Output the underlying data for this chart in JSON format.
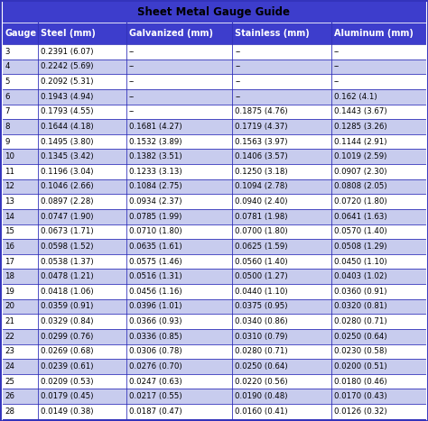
{
  "title": "Sheet Metal Gauge Guide",
  "columns": [
    "Gauge",
    "Steel (mm)",
    "Galvanized (mm)",
    "Stainless (mm)",
    "Aluminum (mm)"
  ],
  "rows": [
    [
      "3",
      "0.2391 (6.07)",
      "--",
      "--",
      "--"
    ],
    [
      "4",
      "0.2242 (5.69)",
      "--",
      "--",
      "--"
    ],
    [
      "5",
      "0.2092 (5.31)",
      "--",
      "--",
      "--"
    ],
    [
      "6",
      "0.1943 (4.94)",
      "--",
      "--",
      "0.162 (4.1)"
    ],
    [
      "7",
      "0.1793 (4.55)",
      "--",
      "0.1875 (4.76)",
      "0.1443 (3.67)"
    ],
    [
      "8",
      "0.1644 (4.18)",
      "0.1681 (4.27)",
      "0.1719 (4.37)",
      "0.1285 (3.26)"
    ],
    [
      "9",
      "0.1495 (3.80)",
      "0.1532 (3.89)",
      "0.1563 (3.97)",
      "0.1144 (2.91)"
    ],
    [
      "10",
      "0.1345 (3.42)",
      "0.1382 (3.51)",
      "0.1406 (3.57)",
      "0.1019 (2.59)"
    ],
    [
      "11",
      "0.1196 (3.04)",
      "0.1233 (3.13)",
      "0.1250 (3.18)",
      "0.0907 (2.30)"
    ],
    [
      "12",
      "0.1046 (2.66)",
      "0.1084 (2.75)",
      "0.1094 (2.78)",
      "0.0808 (2.05)"
    ],
    [
      "13",
      "0.0897 (2.28)",
      "0.0934 (2.37)",
      "0.0940 (2.40)",
      "0.0720 (1.80)"
    ],
    [
      "14",
      "0.0747 (1.90)",
      "0.0785 (1.99)",
      "0.0781 (1.98)",
      "0.0641 (1.63)"
    ],
    [
      "15",
      "0.0673 (1.71)",
      "0.0710 (1.80)",
      "0.0700 (1.80)",
      "0.0570 (1.40)"
    ],
    [
      "16",
      "0.0598 (1.52)",
      "0.0635 (1.61)",
      "0.0625 (1.59)",
      "0.0508 (1.29)"
    ],
    [
      "17",
      "0.0538 (1.37)",
      "0.0575 (1.46)",
      "0.0560 (1.40)",
      "0.0450 (1.10)"
    ],
    [
      "18",
      "0.0478 (1.21)",
      "0.0516 (1.31)",
      "0.0500 (1.27)",
      "0.0403 (1.02)"
    ],
    [
      "19",
      "0.0418 (1.06)",
      "0.0456 (1.16)",
      "0.0440 (1.10)",
      "0.0360 (0.91)"
    ],
    [
      "20",
      "0.0359 (0.91)",
      "0.0396 (1.01)",
      "0.0375 (0.95)",
      "0.0320 (0.81)"
    ],
    [
      "21",
      "0.0329 (0.84)",
      "0.0366 (0.93)",
      "0.0340 (0.86)",
      "0.0280 (0.71)"
    ],
    [
      "22",
      "0.0299 (0.76)",
      "0.0336 (0.85)",
      "0.0310 (0.79)",
      "0.0250 (0.64)"
    ],
    [
      "23",
      "0.0269 (0.68)",
      "0.0306 (0.78)",
      "0.0280 (0.71)",
      "0.0230 (0.58)"
    ],
    [
      "24",
      "0.0239 (0.61)",
      "0.0276 (0.70)",
      "0.0250 (0.64)",
      "0.0200 (0.51)"
    ],
    [
      "25",
      "0.0209 (0.53)",
      "0.0247 (0.63)",
      "0.0220 (0.56)",
      "0.0180 (0.46)"
    ],
    [
      "26",
      "0.0179 (0.45)",
      "0.0217 (0.55)",
      "0.0190 (0.48)",
      "0.0170 (0.43)"
    ],
    [
      "28",
      "0.0149 (0.38)",
      "0.0187 (0.47)",
      "0.0160 (0.41)",
      "0.0126 (0.32)"
    ]
  ],
  "bg_color": "#3333bb",
  "header_bg": "#3d3dcc",
  "header_text_color": "#ffffff",
  "row_bg_light": "#ffffff",
  "row_bg_dark": "#c8ccee",
  "row_text_color": "#000000",
  "title_color": "#000000",
  "title_bg": "#3d3dcc",
  "divider_color": "#3333bb",
  "col_widths": [
    0.52,
    1.3,
    1.55,
    1.45,
    1.38
  ],
  "figsize": [
    4.74,
    4.67
  ],
  "dpi": 100
}
